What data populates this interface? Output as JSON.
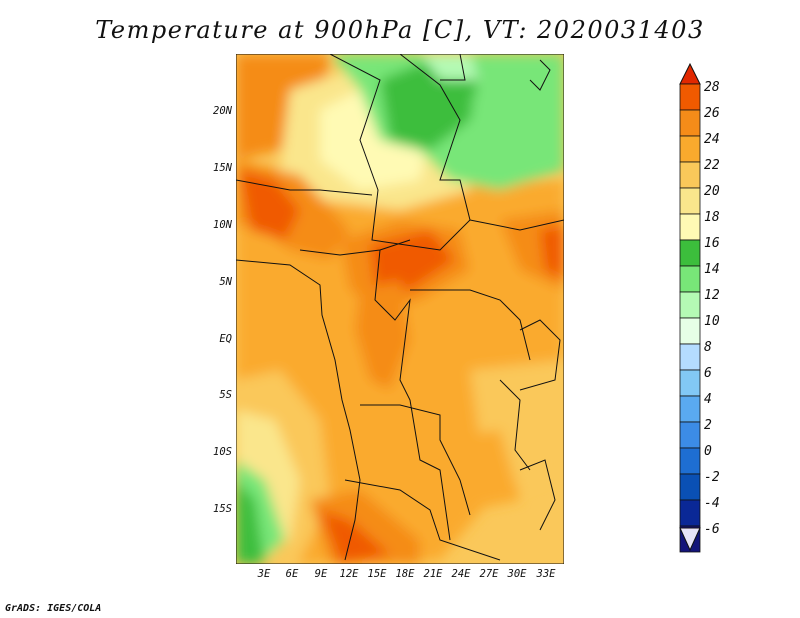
{
  "title": "Temperature at 900hPa [C], VT: 2020031403",
  "credit": "GrADS: IGES/COLA",
  "lat_labels": [
    "20N",
    "15N",
    "10N",
    "5N",
    "EQ",
    "5S",
    "10S",
    "15S"
  ],
  "lon_labels": [
    "3E",
    "6E",
    "9E",
    "12E",
    "15E",
    "18E",
    "21E",
    "24E",
    "27E",
    "30E",
    "33E"
  ],
  "colorbar": {
    "labels": [
      "28",
      "26",
      "24",
      "22",
      "20",
      "18",
      "16",
      "14",
      "12",
      "10",
      "8",
      "6",
      "4",
      "2",
      "0",
      "-2",
      "-4",
      "-6"
    ],
    "colors": [
      "#e12800",
      "#f05a00",
      "#f58c19",
      "#faaa2d",
      "#fac85a",
      "#fae68c",
      "#fffab4",
      "#3cbe3c",
      "#78e678",
      "#b4fab4",
      "#e6ffe6",
      "#b4dcff",
      "#82c8f5",
      "#5aaaf0",
      "#3c8ce6",
      "#1e6ed2",
      "#0a50b4",
      "#0a2896",
      "#14147a",
      "#e8e4f8"
    ]
  }
}
